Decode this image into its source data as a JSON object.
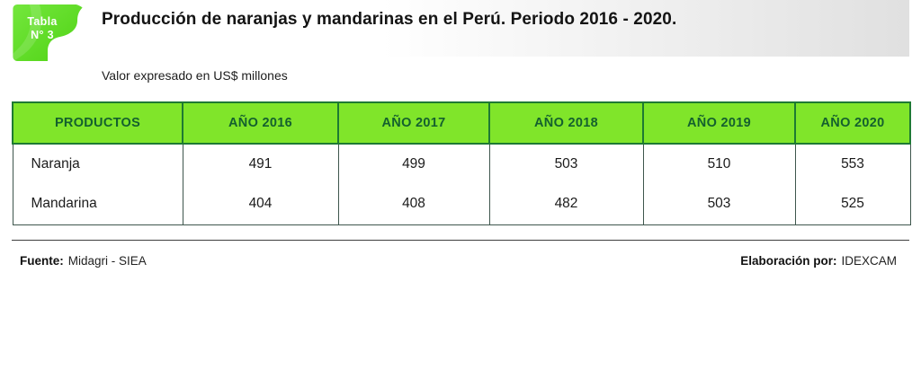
{
  "badge": {
    "line1": "Tabla",
    "line2": "N° 3"
  },
  "header": {
    "title": "Producción de naranjas y mandarinas en el Perú. Periodo 2016 - 2020.",
    "subtitle": "Valor expresado en US$ millones"
  },
  "table": {
    "columns": [
      "PRODUCTOS",
      "AÑO 2016",
      "AÑO 2017",
      "AÑO 2018",
      "AÑO 2019",
      "AÑO 2020"
    ]
  },
  "chart_data": {
    "type": "table",
    "title": "Producción de naranjas y mandarinas en el Perú. Periodo 2016 - 2020.",
    "unit": "US$ millones",
    "categories": [
      "AÑO 2016",
      "AÑO 2017",
      "AÑO 2018",
      "AÑO 2019",
      "AÑO 2020"
    ],
    "series": [
      {
        "name": "Naranja",
        "values": [
          491,
          499,
          503,
          510,
          553
        ]
      },
      {
        "name": "Mandarina",
        "values": [
          404,
          408,
          482,
          503,
          525
        ]
      }
    ]
  },
  "footer": {
    "source_label": "Fuente:",
    "source_value": "Midagri - SIEA",
    "elaboration_label": "Elaboración por:",
    "elaboration_value": "IDEXCAM"
  },
  "colors": {
    "badge_green": "#5bd922",
    "header_green": "#80e52a",
    "header_text_green": "#14602e",
    "header_border_green": "#1e7a33",
    "body_border": "#3e564d",
    "band_gray": "#e0e0e0"
  }
}
